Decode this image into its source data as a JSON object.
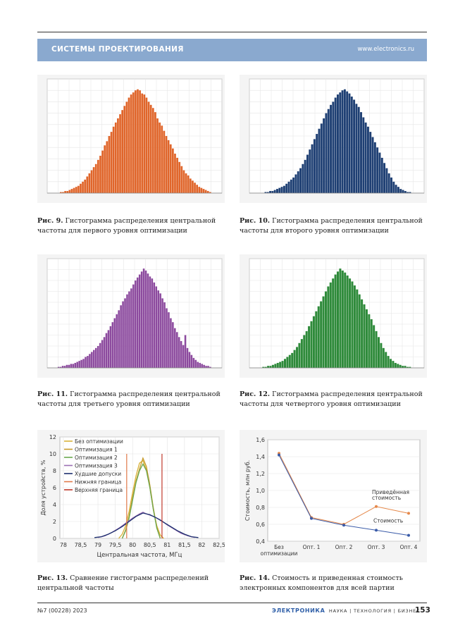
{
  "header": {
    "title": "СИСТЕМЫ ПРОЕКТИРОВАНИЯ",
    "url": "www.electronics.ru"
  },
  "captions": [
    {
      "num": "Рис. 9.",
      "line1": "Гистограмма распределения центральной",
      "line2": "частоты для первого уровня оптимизации"
    },
    {
      "num": "Рис. 10.",
      "line1": "Гистограмма распределения центральной",
      "line2": "частоты для второго уровня оптимизации"
    },
    {
      "num": "Рис. 11.",
      "line1": "Гистограмма распределения центральной",
      "line2": "частоты для третьего уровня оптимизации"
    },
    {
      "num": "Рис. 12.",
      "line1": "Гистограмма распределения центральной",
      "line2": "частоты для четвертого уровня оптимизации"
    },
    {
      "num": "Рис. 13.",
      "line1": "Сравнение гистограмм распределений",
      "line2": "центральной частоты"
    },
    {
      "num": "Рис. 14.",
      "line1": "Стоимость и приведенная стоимость",
      "line2": "электронных компонентов для всей партии"
    }
  ],
  "footer": {
    "issue": "№7 (00228) 2023",
    "brand": "ЭЛЕКТРОНИКА",
    "tagline": "НАУКА | ТЕХНОЛОГИЯ | БИЗНЕС",
    "page": "153"
  },
  "colors": {
    "hist1": "#e0652a",
    "hist2": "#1e3f73",
    "hist3": "#8c4a9e",
    "hist4": "#2e8a3a"
  },
  "chart_data": [
    {
      "type": "bar",
      "title": "Рис. 9",
      "color": "#e0652a",
      "values": [
        0,
        1,
        1,
        2,
        2,
        3,
        4,
        5,
        6,
        7,
        9,
        11,
        13,
        16,
        19,
        22,
        25,
        28,
        32,
        36,
        41,
        46,
        50,
        55,
        59,
        64,
        68,
        72,
        76,
        80,
        84,
        88,
        92,
        95,
        97,
        99,
        100,
        99,
        96,
        95,
        92,
        88,
        85,
        82,
        78,
        72,
        68,
        65,
        60,
        55,
        51,
        47,
        43,
        38,
        34,
        30,
        26,
        22,
        19,
        17,
        14,
        12,
        10,
        8,
        6,
        5,
        4,
        3,
        2,
        1
      ],
      "ylim": [
        0,
        110
      ]
    },
    {
      "type": "bar",
      "title": "Рис. 10",
      "color": "#1e3f73",
      "values": [
        0,
        0,
        1,
        1,
        2,
        2,
        3,
        4,
        5,
        6,
        7,
        9,
        11,
        13,
        15,
        18,
        21,
        24,
        28,
        32,
        37,
        42,
        47,
        52,
        57,
        62,
        67,
        72,
        77,
        81,
        85,
        88,
        92,
        95,
        97,
        99,
        100,
        98,
        96,
        93,
        90,
        86,
        83,
        78,
        73,
        68,
        64,
        59,
        54,
        49,
        44,
        39,
        34,
        29,
        24,
        19,
        15,
        11,
        8,
        6,
        4,
        3,
        2,
        1,
        1,
        0
      ],
      "ylim": [
        0,
        110
      ]
    },
    {
      "type": "bar",
      "title": "Рис. 11",
      "color": "#8c4a9e",
      "values": [
        1,
        1,
        2,
        2,
        3,
        3,
        4,
        4,
        5,
        6,
        7,
        8,
        9,
        11,
        12,
        14,
        16,
        18,
        20,
        22,
        25,
        28,
        31,
        35,
        38,
        42,
        46,
        50,
        54,
        58,
        63,
        67,
        70,
        74,
        77,
        80,
        84,
        88,
        91,
        94,
        97,
        100,
        98,
        95,
        92,
        90,
        86,
        82,
        78,
        75,
        70,
        66,
        60,
        56,
        50,
        46,
        40,
        36,
        31,
        27,
        23,
        33,
        20,
        16,
        13,
        10,
        8,
        6,
        5,
        4,
        3,
        2,
        2,
        1
      ],
      "ylim": [
        0,
        110
      ]
    },
    {
      "type": "bar",
      "title": "Рис. 12",
      "color": "#2e8a3a",
      "values": [
        0,
        1,
        1,
        2,
        2,
        3,
        4,
        5,
        6,
        7,
        9,
        11,
        13,
        15,
        18,
        21,
        25,
        29,
        33,
        37,
        42,
        47,
        52,
        57,
        62,
        67,
        72,
        77,
        82,
        86,
        90,
        94,
        97,
        100,
        98,
        96,
        93,
        90,
        87,
        83,
        79,
        74,
        69,
        64,
        59,
        54,
        49,
        43,
        37,
        31,
        25,
        20,
        16,
        12,
        9,
        7,
        5,
        4,
        3,
        2,
        2,
        1,
        1,
        0
      ],
      "ylim": [
        0,
        110
      ]
    },
    {
      "type": "line",
      "xlabel": "Центральная частота, МГц",
      "ylabel": "Доля устройств, %",
      "xlim": [
        77.9,
        82.5
      ],
      "ylim": [
        0,
        12
      ],
      "xticks": [
        "78",
        "78,5",
        "79",
        "79,5",
        "80",
        "80,5",
        "81",
        "81,5",
        "82",
        "82,5"
      ],
      "yticks": [
        "0",
        "2",
        "4",
        "6",
        "8",
        "10",
        "12"
      ],
      "series": [
        {
          "name": "Без оптимизации",
          "color": "#d9b33a",
          "x": [
            79.6,
            79.7,
            79.8,
            79.9,
            80.0,
            80.1,
            80.2,
            80.3,
            80.4,
            80.5,
            80.6,
            80.7,
            80.8,
            80.9
          ],
          "y": [
            0,
            0.5,
            1.5,
            3.2,
            5.4,
            7.4,
            8.9,
            9.2,
            8.1,
            6.0,
            3.4,
            1.5,
            0.4,
            0
          ]
        },
        {
          "name": "Оптимизация 1",
          "color": "#c79a2a",
          "x": [
            79.7,
            79.8,
            79.9,
            80.0,
            80.1,
            80.2,
            80.3,
            80.4,
            80.5,
            80.6,
            80.7,
            80.8
          ],
          "y": [
            0,
            1.0,
            2.6,
            4.8,
            6.8,
            8.2,
            9.5,
            8.5,
            6.3,
            3.6,
            1.3,
            0
          ]
        },
        {
          "name": "Оптимизация 2",
          "color": "#6aa84f",
          "x": [
            79.7,
            79.8,
            79.9,
            80.0,
            80.1,
            80.2,
            80.3,
            80.4,
            80.5,
            80.6,
            80.7,
            80.8
          ],
          "y": [
            0,
            0.9,
            2.4,
            4.5,
            6.6,
            8.0,
            8.8,
            8.0,
            6.0,
            3.4,
            1.2,
            0
          ]
        },
        {
          "name": "Оптимизация 3",
          "color": "#9b6fb3",
          "x": [
            79.0,
            79.2,
            79.4,
            79.6,
            79.8,
            80.0,
            80.2,
            80.3,
            80.4,
            80.6,
            80.8,
            81.0,
            81.2,
            81.4,
            81.6,
            81.8
          ],
          "y": [
            0.1,
            0.3,
            0.7,
            1.2,
            1.8,
            2.4,
            2.9,
            3.1,
            2.9,
            2.6,
            2.2,
            1.6,
            1.1,
            0.6,
            0.3,
            0.1
          ]
        },
        {
          "name": "Худшие допуски",
          "color": "#1c2e6e",
          "x": [
            78.9,
            79.1,
            79.3,
            79.5,
            79.7,
            79.9,
            80.1,
            80.3,
            80.5,
            80.7,
            80.9,
            81.1,
            81.3,
            81.5,
            81.7,
            81.9
          ],
          "y": [
            0.1,
            0.2,
            0.5,
            0.9,
            1.4,
            2.0,
            2.6,
            3.0,
            2.8,
            2.4,
            1.9,
            1.4,
            0.9,
            0.5,
            0.2,
            0.1
          ]
        },
        {
          "name": "Нижняя граница",
          "color": "#e07a4a",
          "x": [
            79.83,
            79.83
          ],
          "y": [
            0,
            10
          ]
        },
        {
          "name": "Верхняя граница",
          "color": "#c0392b",
          "x": [
            80.85,
            80.85
          ],
          "y": [
            0,
            10
          ]
        }
      ]
    },
    {
      "type": "line",
      "ylabel": "Стоимость, млн руб.",
      "ylim": [
        0.4,
        1.6
      ],
      "yticks": [
        "0,4",
        "0,6",
        "0,8",
        "1,0",
        "1,2",
        "1,4",
        "1,6"
      ],
      "categories": [
        "Без оптимизации",
        "Опт. 1",
        "Опт. 2",
        "Опт. 3",
        "Опт. 4"
      ],
      "series": [
        {
          "name": "Приведённая стоимость",
          "color": "#e5884a",
          "values": [
            1.44,
            0.68,
            0.6,
            0.81,
            0.73
          ]
        },
        {
          "name": "Стоимость",
          "color": "#3a5ba8",
          "values": [
            1.42,
            0.67,
            0.59,
            0.53,
            0.47
          ]
        }
      ]
    }
  ]
}
